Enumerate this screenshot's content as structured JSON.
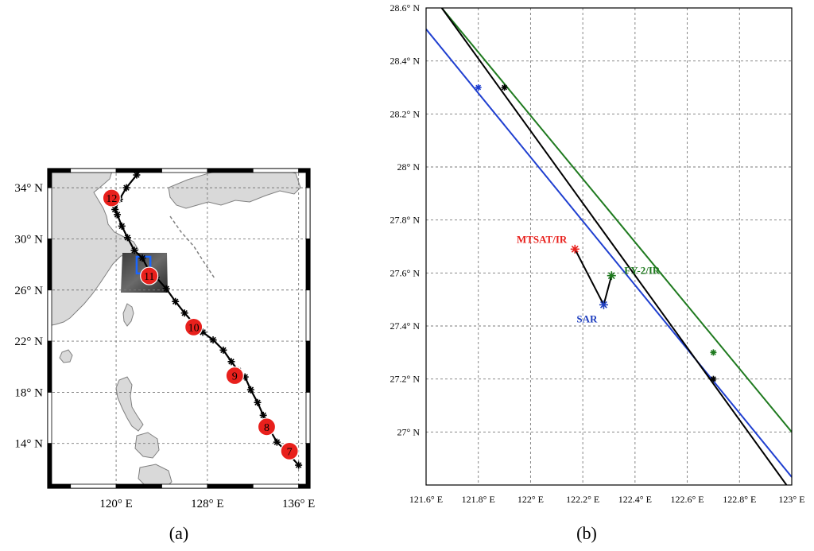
{
  "panels": [
    {
      "id": "a",
      "caption": "(a)"
    },
    {
      "id": "b",
      "caption": "(b)"
    }
  ],
  "colors": {
    "track": "#000000",
    "marker_fill": "#e8201c",
    "land": "#d9d9d9",
    "coast": "#808080",
    "sar_box": "#1a66ff",
    "mtsat": "#e8201c",
    "fy2": "#1f7a1f",
    "sar": "#1f3fbf",
    "blue_line": "#1f3fd0",
    "green_line": "#1f7a1f",
    "black_line": "#000000"
  },
  "chart_data": [
    {
      "type": "scatter",
      "panel": "a",
      "title": "",
      "xlabel": "",
      "ylabel": "",
      "xlim": [
        114,
        137
      ],
      "ylim": [
        10.5,
        35.5
      ],
      "x_ticks": [
        {
          "v": 120,
          "label": "120° E"
        },
        {
          "v": 128,
          "label": "128° E"
        },
        {
          "v": 136,
          "label": "136° E"
        }
      ],
      "y_ticks": [
        {
          "v": 14,
          "label": "14° N"
        },
        {
          "v": 18,
          "label": "18° N"
        },
        {
          "v": 22,
          "label": "22° N"
        },
        {
          "v": 26,
          "label": "26° N"
        },
        {
          "v": 30,
          "label": "30° N"
        },
        {
          "v": 34,
          "label": "34° N"
        }
      ],
      "grid": true,
      "track": [
        {
          "lon": 136.0,
          "lat": 12.3
        },
        {
          "lon": 134.9,
          "lat": 13.4
        },
        {
          "lon": 134.1,
          "lat": 14.1
        },
        {
          "lon": 133.4,
          "lat": 15.2
        },
        {
          "lon": 132.9,
          "lat": 16.2
        },
        {
          "lon": 132.4,
          "lat": 17.2
        },
        {
          "lon": 131.8,
          "lat": 18.2
        },
        {
          "lon": 131.3,
          "lat": 19.2
        },
        {
          "lon": 130.7,
          "lat": 19.7
        },
        {
          "lon": 130.1,
          "lat": 20.4
        },
        {
          "lon": 129.4,
          "lat": 21.3
        },
        {
          "lon": 128.5,
          "lat": 22.1
        },
        {
          "lon": 127.6,
          "lat": 22.7
        },
        {
          "lon": 126.8,
          "lat": 23.4
        },
        {
          "lon": 126.0,
          "lat": 24.2
        },
        {
          "lon": 125.2,
          "lat": 25.1
        },
        {
          "lon": 124.4,
          "lat": 26.1
        },
        {
          "lon": 123.5,
          "lat": 27.0
        },
        {
          "lon": 122.9,
          "lat": 27.5
        },
        {
          "lon": 122.3,
          "lat": 28.5
        },
        {
          "lon": 121.6,
          "lat": 29.1
        },
        {
          "lon": 121.0,
          "lat": 30.1
        },
        {
          "lon": 120.5,
          "lat": 31.0
        },
        {
          "lon": 120.1,
          "lat": 31.9
        },
        {
          "lon": 119.9,
          "lat": 32.3
        },
        {
          "lon": 120.3,
          "lat": 33.1
        },
        {
          "lon": 120.9,
          "lat": 34.0
        },
        {
          "lon": 121.8,
          "lat": 35.0
        },
        {
          "lon": 122.3,
          "lat": 35.5
        }
      ],
      "markers": [
        {
          "label": "7",
          "lon": 135.2,
          "lat": 13.4
        },
        {
          "label": "8",
          "lon": 133.2,
          "lat": 15.3
        },
        {
          "label": "9",
          "lon": 130.4,
          "lat": 19.3
        },
        {
          "lon": 126.8,
          "label": "10",
          "lat": 23.1
        },
        {
          "label": "11",
          "lon": 122.9,
          "lat": 27.1
        },
        {
          "label": "12",
          "lon": 119.6,
          "lat": 33.2
        }
      ],
      "sar_box": {
        "lon": [
          121.8,
          123.0
        ],
        "lat": [
          27.3,
          28.6
        ]
      }
    },
    {
      "type": "line",
      "panel": "b",
      "title": "",
      "xlabel": "",
      "ylabel": "",
      "xlim": [
        121.6,
        123.0
      ],
      "ylim": [
        26.8,
        28.6
      ],
      "x_ticks": [
        {
          "v": 121.6,
          "label": "121.6° E"
        },
        {
          "v": 121.8,
          "label": "121.8° E"
        },
        {
          "v": 122.0,
          "label": "122° E"
        },
        {
          "v": 122.2,
          "label": "122.2° E"
        },
        {
          "v": 122.4,
          "label": "122.4° E"
        },
        {
          "v": 122.6,
          "label": "122.6° E"
        },
        {
          "v": 122.8,
          "label": "122.8° E"
        },
        {
          "v": 123.0,
          "label": "123° E"
        }
      ],
      "y_ticks": [
        {
          "v": 27.0,
          "label": "27° N"
        },
        {
          "v": 27.2,
          "label": "27.2° N"
        },
        {
          "v": 27.4,
          "label": "27.4° N"
        },
        {
          "v": 27.6,
          "label": "27.6° N"
        },
        {
          "v": 27.8,
          "label": "27.8° N"
        },
        {
          "v": 28.0,
          "label": "28° N"
        },
        {
          "v": 28.2,
          "label": "28.2° N"
        },
        {
          "v": 28.4,
          "label": "28.4° N"
        },
        {
          "v": 28.6,
          "label": "28.6° N"
        }
      ],
      "grid": true,
      "series": [
        {
          "color": "blue",
          "x": [
            121.6,
            123.0
          ],
          "y": [
            28.52,
            26.83
          ],
          "stars": [
            {
              "x": 121.8,
              "y": 28.3
            }
          ]
        },
        {
          "color": "green",
          "x": [
            121.66,
            123.0
          ],
          "y": [
            28.6,
            27.0
          ],
          "stars": [
            {
              "x": 122.7,
              "y": 27.3
            }
          ]
        },
        {
          "color": "black",
          "x": [
            121.66,
            122.98
          ],
          "y": [
            28.6,
            26.8
          ],
          "stars": [
            {
              "x": 121.9,
              "y": 28.3
            },
            {
              "x": 122.7,
              "y": 27.2
            }
          ]
        }
      ],
      "positions": [
        {
          "name": "MTSAT/IR",
          "x": 122.17,
          "y": 27.69,
          "color": "mtsat"
        },
        {
          "name": "SAR",
          "x": 122.28,
          "y": 27.48,
          "color": "sar"
        },
        {
          "name": "FY-2/IR",
          "x": 122.31,
          "y": 27.59,
          "color": "fy2"
        }
      ]
    }
  ]
}
